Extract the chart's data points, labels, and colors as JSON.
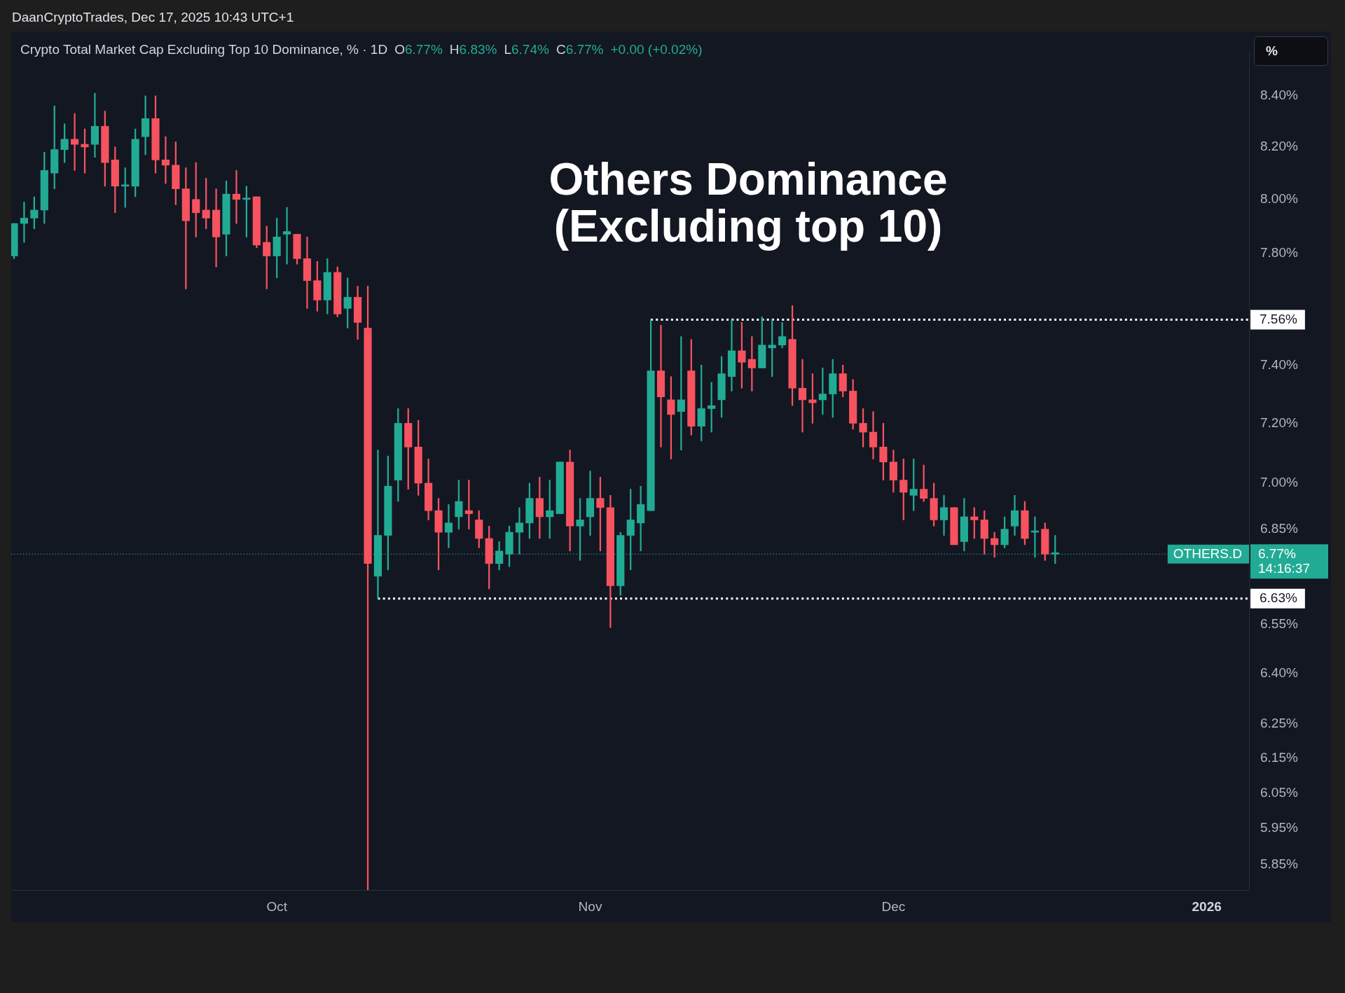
{
  "chart_data": {
    "type": "candlestick",
    "title": "Others Dominance (Excluding top 10)",
    "subtitle": "Crypto Total Market Cap Excluding Top 10 Dominance, % · 1D",
    "annotations": [
      "DaanCryptoTrades, Dec 17, 2025 10:43 UTC+1",
      "%",
      "14:16:37",
      "O6.77%",
      "H6.83%",
      "L6.74%",
      "C6.77%",
      "+0.00 (+0.02%)",
      {
        "text": "OTHERS.D",
        "y": 6.77
      }
    ],
    "x": [
      "2025-09-05",
      "2025-09-06",
      "2025-09-07",
      "2025-09-08",
      "2025-09-09",
      "2025-09-10",
      "2025-09-11",
      "2025-09-12",
      "2025-09-13",
      "2025-09-14",
      "2025-09-15",
      "2025-09-16",
      "2025-09-17",
      "2025-09-18",
      "2025-09-19",
      "2025-09-20",
      "2025-09-21",
      "2025-09-22",
      "2025-09-23",
      "2025-09-24",
      "2025-09-25",
      "2025-09-26",
      "2025-09-27",
      "2025-09-28",
      "2025-09-29",
      "2025-09-30",
      "2025-10-01",
      "2025-10-02",
      "2025-10-03",
      "2025-10-04",
      "2025-10-05",
      "2025-10-06",
      "2025-10-07",
      "2025-10-08",
      "2025-10-09",
      "2025-10-10",
      "2025-10-11",
      "2025-10-12",
      "2025-10-13",
      "2025-10-14",
      "2025-10-15",
      "2025-10-16",
      "2025-10-17",
      "2025-10-18",
      "2025-10-19",
      "2025-10-20",
      "2025-10-21",
      "2025-10-22",
      "2025-10-23",
      "2025-10-24",
      "2025-10-25",
      "2025-10-26",
      "2025-10-27",
      "2025-10-28",
      "2025-10-29",
      "2025-10-30",
      "2025-10-31",
      "2025-11-01",
      "2025-11-02",
      "2025-11-03",
      "2025-11-04",
      "2025-11-05",
      "2025-11-06",
      "2025-11-07",
      "2025-11-08",
      "2025-11-09",
      "2025-11-10",
      "2025-11-11",
      "2025-11-12",
      "2025-11-13",
      "2025-11-14",
      "2025-11-15",
      "2025-11-16",
      "2025-11-17",
      "2025-11-18",
      "2025-11-19",
      "2025-11-20",
      "2025-11-21",
      "2025-11-22",
      "2025-11-23",
      "2025-11-24",
      "2025-11-25",
      "2025-11-26",
      "2025-11-27",
      "2025-11-28",
      "2025-11-29",
      "2025-11-30",
      "2025-12-01",
      "2025-12-02",
      "2025-12-03",
      "2025-12-04",
      "2025-12-05",
      "2025-12-06",
      "2025-12-07",
      "2025-12-08",
      "2025-12-09",
      "2025-12-10",
      "2025-12-11",
      "2025-12-12",
      "2025-12-13",
      "2025-12-14",
      "2025-12-15",
      "2025-12-16",
      "2025-12-17"
    ],
    "ohlc": [
      [
        7.79,
        7.91,
        7.78,
        7.91
      ],
      [
        7.91,
        7.99,
        7.84,
        7.93
      ],
      [
        7.93,
        8.01,
        7.89,
        7.96
      ],
      [
        7.96,
        8.18,
        7.91,
        8.11
      ],
      [
        8.1,
        8.36,
        8.04,
        8.19
      ],
      [
        8.19,
        8.29,
        8.14,
        8.23
      ],
      [
        8.23,
        8.33,
        8.11,
        8.21
      ],
      [
        8.21,
        8.27,
        8.1,
        8.2
      ],
      [
        8.21,
        8.41,
        8.16,
        8.28
      ],
      [
        8.28,
        8.34,
        8.05,
        8.14
      ],
      [
        8.15,
        8.2,
        7.95,
        8.05
      ],
      [
        8.05,
        8.12,
        7.97,
        8.05
      ],
      [
        8.05,
        8.27,
        8.01,
        8.23
      ],
      [
        8.24,
        8.4,
        8.17,
        8.31
      ],
      [
        8.31,
        8.4,
        8.1,
        8.15
      ],
      [
        8.15,
        8.24,
        8.06,
        8.13
      ],
      [
        8.13,
        8.22,
        7.98,
        8.04
      ],
      [
        8.04,
        8.12,
        7.67,
        7.92
      ],
      [
        8.0,
        8.14,
        7.86,
        7.95
      ],
      [
        7.96,
        8.08,
        7.89,
        7.93
      ],
      [
        7.96,
        8.04,
        7.75,
        7.86
      ],
      [
        7.87,
        8.07,
        7.79,
        8.02
      ],
      [
        8.02,
        8.11,
        7.91,
        8.0
      ],
      [
        8.0,
        8.05,
        7.86,
        8.0
      ],
      [
        8.01,
        8.01,
        7.82,
        7.83
      ],
      [
        7.84,
        7.9,
        7.67,
        7.79
      ],
      [
        7.79,
        7.93,
        7.71,
        7.86
      ],
      [
        7.87,
        7.97,
        7.76,
        7.88
      ],
      [
        7.87,
        7.87,
        7.76,
        7.78
      ],
      [
        7.78,
        7.86,
        7.6,
        7.7
      ],
      [
        7.7,
        7.77,
        7.59,
        7.63
      ],
      [
        7.63,
        7.78,
        7.58,
        7.73
      ],
      [
        7.73,
        7.75,
        7.57,
        7.58
      ],
      [
        7.6,
        7.71,
        7.53,
        7.64
      ],
      [
        7.64,
        7.68,
        7.49,
        7.55
      ],
      [
        7.53,
        7.68,
        5.78,
        6.74
      ],
      [
        6.7,
        7.11,
        6.63,
        6.83
      ],
      [
        6.83,
        7.09,
        6.72,
        6.99
      ],
      [
        7.01,
        7.25,
        6.94,
        7.2
      ],
      [
        7.2,
        7.25,
        6.98,
        7.12
      ],
      [
        7.12,
        7.21,
        6.96,
        7.0
      ],
      [
        7.0,
        7.08,
        6.88,
        6.91
      ],
      [
        6.91,
        6.95,
        6.72,
        6.84
      ],
      [
        6.84,
        6.93,
        6.79,
        6.87
      ],
      [
        6.89,
        7.01,
        6.85,
        6.94
      ],
      [
        6.91,
        7.01,
        6.85,
        6.9
      ],
      [
        6.88,
        6.91,
        6.79,
        6.82
      ],
      [
        6.82,
        6.86,
        6.66,
        6.74
      ],
      [
        6.74,
        6.81,
        6.72,
        6.78
      ],
      [
        6.77,
        6.86,
        6.73,
        6.84
      ],
      [
        6.84,
        6.92,
        6.77,
        6.87
      ],
      [
        6.87,
        7.0,
        6.82,
        6.95
      ],
      [
        6.95,
        7.02,
        6.82,
        6.89
      ],
      [
        6.89,
        7.01,
        6.82,
        6.91
      ],
      [
        6.9,
        7.07,
        6.9,
        7.07
      ],
      [
        7.07,
        7.11,
        6.78,
        6.86
      ],
      [
        6.86,
        6.95,
        6.75,
        6.88
      ],
      [
        6.89,
        7.04,
        6.83,
        6.95
      ],
      [
        6.95,
        7.02,
        6.78,
        6.92
      ],
      [
        6.92,
        6.96,
        6.54,
        6.67
      ],
      [
        6.67,
        6.84,
        6.64,
        6.83
      ],
      [
        6.83,
        6.98,
        6.72,
        6.88
      ],
      [
        6.87,
        6.99,
        6.78,
        6.93
      ],
      [
        6.91,
        7.56,
        6.91,
        7.38
      ],
      [
        7.38,
        7.54,
        7.12,
        7.29
      ],
      [
        7.28,
        7.36,
        7.08,
        7.23
      ],
      [
        7.24,
        7.5,
        7.11,
        7.28
      ],
      [
        7.38,
        7.49,
        7.16,
        7.19
      ],
      [
        7.19,
        7.4,
        7.14,
        7.25
      ],
      [
        7.25,
        7.34,
        7.17,
        7.26
      ],
      [
        7.28,
        7.43,
        7.22,
        7.37
      ],
      [
        7.36,
        7.56,
        7.31,
        7.45
      ],
      [
        7.45,
        7.55,
        7.32,
        7.41
      ],
      [
        7.42,
        7.5,
        7.31,
        7.39
      ],
      [
        7.39,
        7.57,
        7.39,
        7.47
      ],
      [
        7.46,
        7.56,
        7.36,
        7.47
      ],
      [
        7.47,
        7.55,
        7.46,
        7.5
      ],
      [
        7.49,
        7.61,
        7.26,
        7.32
      ],
      [
        7.32,
        7.42,
        7.17,
        7.28
      ],
      [
        7.28,
        7.37,
        7.2,
        7.27
      ],
      [
        7.28,
        7.39,
        7.23,
        7.3
      ],
      [
        7.3,
        7.42,
        7.22,
        7.37
      ],
      [
        7.37,
        7.4,
        7.29,
        7.31
      ],
      [
        7.31,
        7.35,
        7.18,
        7.2
      ],
      [
        7.2,
        7.25,
        7.12,
        7.17
      ],
      [
        7.17,
        7.24,
        7.08,
        7.12
      ],
      [
        7.12,
        7.2,
        7.01,
        7.07
      ],
      [
        7.07,
        7.11,
        6.97,
        7.01
      ],
      [
        7.01,
        7.08,
        6.88,
        6.97
      ],
      [
        6.96,
        7.08,
        6.91,
        6.98
      ],
      [
        6.98,
        7.06,
        6.94,
        6.95
      ],
      [
        6.95,
        7.0,
        6.86,
        6.88
      ],
      [
        6.88,
        6.96,
        6.83,
        6.92
      ],
      [
        6.92,
        6.92,
        6.8,
        6.8
      ],
      [
        6.81,
        6.95,
        6.78,
        6.89
      ],
      [
        6.89,
        6.92,
        6.82,
        6.88
      ],
      [
        6.88,
        6.91,
        6.77,
        6.82
      ],
      [
        6.82,
        6.84,
        6.76,
        6.8
      ],
      [
        6.8,
        6.89,
        6.79,
        6.85
      ],
      [
        6.86,
        6.96,
        6.83,
        6.91
      ],
      [
        6.91,
        6.94,
        6.8,
        6.82
      ],
      [
        6.84,
        6.89,
        6.76,
        6.84
      ],
      [
        6.85,
        6.87,
        6.75,
        6.77
      ],
      [
        6.77,
        6.83,
        6.74,
        6.77
      ]
    ],
    "colors": [
      "#22ab94",
      "#22ab94",
      "#22ab94",
      "#22ab94",
      "#22ab94",
      "#22ab94",
      "#f7525f",
      "#f7525f",
      "#22ab94",
      "#f7525f",
      "#f7525f",
      "#22ab94",
      "#22ab94",
      "#22ab94",
      "#f7525f",
      "#f7525f",
      "#f7525f",
      "#f7525f",
      "#f7525f",
      "#f7525f",
      "#f7525f",
      "#22ab94",
      "#f7525f",
      "#22ab94",
      "#f7525f",
      "#f7525f",
      "#22ab94",
      "#22ab94",
      "#f7525f",
      "#f7525f",
      "#f7525f",
      "#22ab94",
      "#f7525f",
      "#22ab94",
      "#f7525f",
      "#f7525f",
      "#22ab94",
      "#22ab94",
      "#22ab94",
      "#f7525f",
      "#f7525f",
      "#f7525f",
      "#f7525f",
      "#22ab94",
      "#22ab94",
      "#f7525f",
      "#f7525f",
      "#f7525f",
      "#22ab94",
      "#22ab94",
      "#22ab94",
      "#22ab94",
      "#f7525f",
      "#22ab94",
      "#22ab94",
      "#f7525f",
      "#22ab94",
      "#22ab94",
      "#f7525f",
      "#f7525f",
      "#22ab94",
      "#22ab94",
      "#22ab94",
      "#22ab94",
      "#f7525f",
      "#f7525f",
      "#22ab94",
      "#f7525f",
      "#22ab94",
      "#22ab94",
      "#22ab94",
      "#22ab94",
      "#f7525f",
      "#f7525f",
      "#22ab94",
      "#22ab94",
      "#22ab94",
      "#f7525f",
      "#f7525f",
      "#f7525f",
      "#22ab94",
      "#22ab94",
      "#f7525f",
      "#f7525f",
      "#f7525f",
      "#f7525f",
      "#f7525f",
      "#f7525f",
      "#f7525f",
      "#22ab94",
      "#f7525f",
      "#f7525f",
      "#22ab94",
      "#f7525f",
      "#22ab94",
      "#f7525f",
      "#f7525f",
      "#f7525f",
      "#22ab94",
      "#22ab94",
      "#f7525f",
      "#22ab94",
      "#f7525f",
      "#22ab94"
    ],
    "series": [
      {
        "type": "line",
        "x": [
          "2025-11-07",
          "2026-01-05T04:20"
        ],
        "values": [
          7.56,
          7.56
        ],
        "color": "#ffffff",
        "line_style": "dotted",
        "value_labels": [
          null,
          "7.56%"
        ]
      },
      {
        "type": "line",
        "x": [
          "2025-10-11",
          "2026-01-05T04:20"
        ],
        "values": [
          6.63,
          6.63
        ],
        "color": "#ffffff",
        "line_style": "dotted",
        "value_labels": [
          null,
          "6.63%"
        ]
      }
    ],
    "ref_lines": [
      {
        "axis": "y",
        "value": 6.77,
        "label": "6.77%",
        "color": "#22ab94",
        "line_style": "dotted"
      }
    ],
    "xlim": [
      "2025-09-04T17:20",
      "2026-01-05T04:20"
    ],
    "xticks": [
      {
        "value": "2025-10-01",
        "label": "Oct"
      },
      {
        "value": "2025-11-01",
        "label": "Nov"
      },
      {
        "value": "2025-12-01",
        "label": "Dec"
      },
      {
        "value": "2026-01-01",
        "label": "2026"
      }
    ],
    "ylim": [
      5.78,
      8.58
    ],
    "log": true,
    "yticks": [
      {
        "value": 8.4,
        "label": "8.40%"
      },
      {
        "value": 8.2,
        "label": "8.20%"
      },
      {
        "value": 8.0,
        "label": "8.00%"
      },
      {
        "value": 7.8,
        "label": "7.80%"
      },
      {
        "value": 7.4,
        "label": "7.40%"
      },
      {
        "value": 7.2,
        "label": "7.20%"
      },
      {
        "value": 7.0,
        "label": "7.00%"
      },
      {
        "value": 6.85,
        "label": "6.85%"
      },
      {
        "value": 6.55,
        "label": "6.55%"
      },
      {
        "value": 6.4,
        "label": "6.40%"
      },
      {
        "value": 6.25,
        "label": "6.25%"
      },
      {
        "value": 6.15,
        "label": "6.15%"
      },
      {
        "value": 6.05,
        "label": "6.05%"
      },
      {
        "value": 5.95,
        "label": "5.95%"
      },
      {
        "value": 5.85,
        "label": "5.85%"
      }
    ]
  }
}
